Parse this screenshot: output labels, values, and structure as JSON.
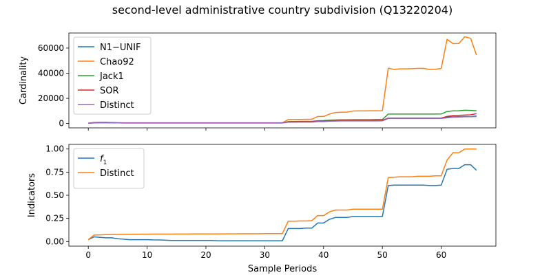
{
  "figure": {
    "title": "second-level administrative country subdivision (Q13220204)"
  },
  "chart_data": [
    {
      "type": "line",
      "ylabel": "Cardinality",
      "xlabel": "",
      "xlim": [
        -3.3,
        69.3
      ],
      "ylim": [
        -3500,
        72000
      ],
      "xticks": [
        0,
        10,
        20,
        30,
        40,
        50,
        60
      ],
      "yticks": [
        0,
        20000,
        40000,
        60000
      ],
      "ytick_labels": [
        "0",
        "20000",
        "40000",
        "60000"
      ],
      "grid": false,
      "legend_position": "upper-left",
      "x": [
        0,
        1,
        2,
        3,
        4,
        5,
        6,
        7,
        8,
        9,
        10,
        11,
        12,
        13,
        14,
        15,
        16,
        17,
        18,
        19,
        20,
        21,
        22,
        23,
        24,
        25,
        26,
        27,
        28,
        29,
        30,
        31,
        32,
        33,
        34,
        35,
        36,
        37,
        38,
        39,
        40,
        41,
        42,
        43,
        44,
        45,
        46,
        47,
        48,
        49,
        50,
        51,
        52,
        53,
        54,
        55,
        56,
        57,
        58,
        59,
        60,
        61,
        62,
        63,
        64,
        65,
        66
      ],
      "series": [
        {
          "name": "N1−UNIF",
          "color": "#1f77b4",
          "values": [
            150,
            500,
            600,
            600,
            550,
            450,
            400,
            400,
            400,
            400,
            400,
            400,
            400,
            400,
            400,
            400,
            400,
            400,
            400,
            400,
            400,
            400,
            400,
            400,
            400,
            400,
            400,
            400,
            400,
            400,
            400,
            400,
            400,
            400,
            1200,
            1250,
            1300,
            1300,
            1300,
            1700,
            1700,
            2100,
            2200,
            2300,
            2300,
            2300,
            2300,
            2300,
            2300,
            2300,
            2400,
            4100,
            4100,
            4100,
            4100,
            4100,
            4100,
            4100,
            4100,
            4100,
            4100,
            5000,
            5300,
            5400,
            5500,
            5400,
            6000
          ]
        },
        {
          "name": "Chao92",
          "color": "#ff7f0e",
          "values": [
            200,
            800,
            900,
            850,
            700,
            600,
            550,
            550,
            550,
            550,
            550,
            550,
            550,
            550,
            550,
            550,
            550,
            550,
            550,
            550,
            550,
            550,
            550,
            550,
            550,
            550,
            550,
            550,
            550,
            550,
            550,
            550,
            550,
            550,
            3100,
            3200,
            3200,
            3300,
            3400,
            5500,
            5600,
            7500,
            8700,
            9000,
            9100,
            9900,
            10000,
            10000,
            10100,
            10100,
            10200,
            44000,
            43000,
            43500,
            43500,
            43600,
            43800,
            43900,
            43000,
            43100,
            43800,
            67000,
            63500,
            63700,
            69000,
            67800,
            54500
          ]
        },
        {
          "name": "Jack1",
          "color": "#2ca02c",
          "values": [
            200,
            700,
            800,
            800,
            650,
            550,
            500,
            500,
            500,
            500,
            500,
            500,
            500,
            500,
            500,
            500,
            500,
            500,
            500,
            500,
            500,
            500,
            500,
            500,
            500,
            500,
            500,
            500,
            500,
            500,
            500,
            500,
            500,
            500,
            1500,
            1600,
            1650,
            1700,
            1700,
            2200,
            2300,
            2700,
            2800,
            2900,
            2900,
            3000,
            3000,
            3000,
            3000,
            3100,
            3200,
            7500,
            7500,
            7500,
            7500,
            7500,
            7500,
            7500,
            7500,
            7500,
            7600,
            9500,
            10000,
            10100,
            10500,
            10400,
            10100
          ]
        },
        {
          "name": "SOR",
          "color": "#d62728",
          "values": [
            180,
            600,
            700,
            700,
            600,
            500,
            450,
            450,
            450,
            450,
            450,
            450,
            450,
            450,
            450,
            450,
            450,
            450,
            450,
            450,
            450,
            450,
            450,
            450,
            450,
            450,
            450,
            450,
            450,
            450,
            450,
            450,
            450,
            450,
            1300,
            1350,
            1400,
            1400,
            1400,
            1900,
            1900,
            2300,
            2400,
            2500,
            2500,
            2500,
            2500,
            2500,
            2500,
            2500,
            2600,
            4300,
            4300,
            4300,
            4300,
            4300,
            4300,
            4300,
            4300,
            4300,
            4300,
            5600,
            6300,
            6500,
            6700,
            6900,
            7800
          ]
        },
        {
          "name": "Distinct",
          "color": "#9467bd",
          "values": [
            150,
            450,
            550,
            550,
            500,
            420,
            380,
            380,
            380,
            380,
            380,
            380,
            380,
            380,
            380,
            380,
            380,
            380,
            380,
            380,
            380,
            380,
            380,
            380,
            380,
            380,
            380,
            380,
            380,
            380,
            380,
            380,
            380,
            380,
            1000,
            1050,
            1100,
            1100,
            1100,
            1500,
            1500,
            1800,
            1900,
            2000,
            2000,
            2000,
            2000,
            2000,
            2000,
            2000,
            2100,
            4000,
            4000,
            4000,
            4000,
            4000,
            4000,
            4000,
            4000,
            4000,
            4000,
            4500,
            5000,
            5100,
            5300,
            5400,
            5500
          ]
        }
      ]
    },
    {
      "type": "line",
      "ylabel": "Indicators",
      "xlabel": "Sample Periods",
      "xlim": [
        -3.3,
        69.3
      ],
      "ylim": [
        -0.05,
        1.05
      ],
      "xticks": [
        0,
        10,
        20,
        30,
        40,
        50,
        60
      ],
      "xtick_labels": [
        "0",
        "10",
        "20",
        "30",
        "40",
        "50",
        "60"
      ],
      "yticks": [
        0.0,
        0.25,
        0.5,
        0.75,
        1.0
      ],
      "ytick_labels": [
        "0.00",
        "0.25",
        "0.50",
        "0.75",
        "1.00"
      ],
      "grid": false,
      "legend_position": "upper-left",
      "x": [
        0,
        1,
        2,
        3,
        4,
        5,
        6,
        7,
        8,
        9,
        10,
        11,
        12,
        13,
        14,
        15,
        16,
        17,
        18,
        19,
        20,
        21,
        22,
        23,
        24,
        25,
        26,
        27,
        28,
        29,
        30,
        31,
        32,
        33,
        34,
        35,
        36,
        37,
        38,
        39,
        40,
        41,
        42,
        43,
        44,
        45,
        46,
        47,
        48,
        49,
        50,
        51,
        52,
        53,
        54,
        55,
        56,
        57,
        58,
        59,
        60,
        61,
        62,
        63,
        64,
        65,
        66
      ],
      "series": [
        {
          "name": "f1",
          "name_main": "f",
          "name_sub": "1",
          "color": "#1f77b4",
          "values": [
            0.02,
            0.05,
            0.045,
            0.04,
            0.04,
            0.03,
            0.025,
            0.02,
            0.02,
            0.02,
            0.02,
            0.018,
            0.017,
            0.015,
            0.012,
            0.012,
            0.012,
            0.012,
            0.012,
            0.012,
            0.012,
            0.011,
            0.008,
            0.008,
            0.008,
            0.008,
            0.008,
            0.008,
            0.008,
            0.008,
            0.008,
            0.008,
            0.008,
            0.008,
            0.14,
            0.14,
            0.14,
            0.145,
            0.145,
            0.2,
            0.2,
            0.24,
            0.26,
            0.26,
            0.26,
            0.27,
            0.27,
            0.27,
            0.27,
            0.27,
            0.27,
            0.605,
            0.61,
            0.61,
            0.61,
            0.61,
            0.61,
            0.61,
            0.605,
            0.605,
            0.61,
            0.78,
            0.79,
            0.79,
            0.83,
            0.83,
            0.77
          ]
        },
        {
          "name": "Distinct",
          "color": "#ff7f0e",
          "values": [
            0.02,
            0.07,
            0.072,
            0.074,
            0.075,
            0.076,
            0.077,
            0.078,
            0.078,
            0.079,
            0.079,
            0.08,
            0.08,
            0.08,
            0.08,
            0.081,
            0.081,
            0.081,
            0.082,
            0.082,
            0.082,
            0.082,
            0.082,
            0.082,
            0.083,
            0.083,
            0.084,
            0.084,
            0.084,
            0.084,
            0.085,
            0.085,
            0.085,
            0.085,
            0.22,
            0.22,
            0.222,
            0.222,
            0.225,
            0.28,
            0.28,
            0.32,
            0.34,
            0.34,
            0.34,
            0.35,
            0.35,
            0.35,
            0.35,
            0.35,
            0.35,
            0.69,
            0.695,
            0.7,
            0.7,
            0.7,
            0.705,
            0.705,
            0.705,
            0.71,
            0.71,
            0.88,
            0.96,
            0.96,
            1.0,
            1.0,
            1.0
          ]
        }
      ]
    }
  ]
}
